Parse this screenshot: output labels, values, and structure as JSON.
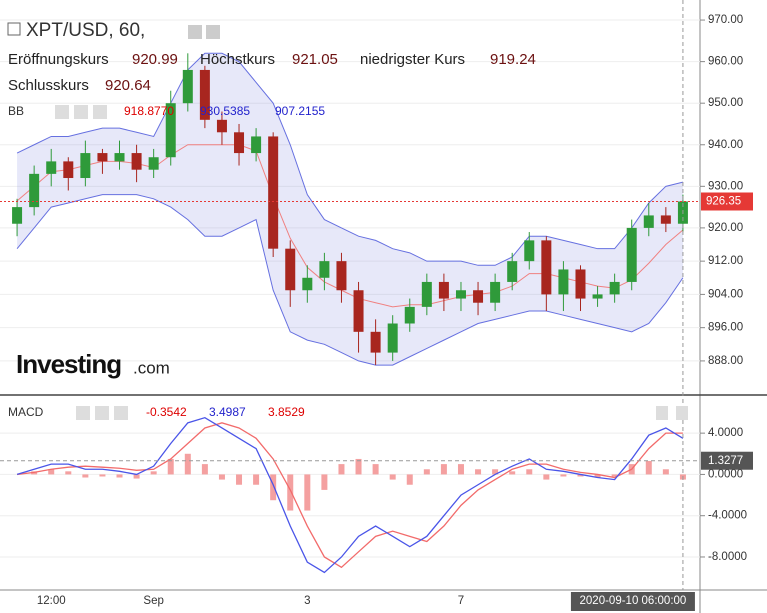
{
  "chart_data": [
    {
      "type": "candlestick",
      "title": "XPT/USD, 60,",
      "legend": {
        "labels": [
          "Eröffnungskurs",
          "Höchstkurs",
          "niedrigster Kurs",
          "Schlusskurs"
        ],
        "values": [
          920.99,
          921.05,
          919.24,
          920.64
        ]
      },
      "indicator": {
        "name": "BB",
        "values": [
          {
            "value": 918.877,
            "label": "918.8770"
          },
          {
            "value": 930.5385,
            "label": "930.5385"
          },
          {
            "value": 907.2155,
            "label": "907.2155"
          }
        ]
      },
      "logo": {
        "name": "Investing",
        "suffix": ".com"
      },
      "up_color": "#2f9a3a",
      "down_color": "#a8261f",
      "open": [
        921,
        925,
        933,
        936,
        932,
        938,
        936,
        938,
        934,
        937,
        950,
        958,
        946,
        943,
        938,
        942,
        915,
        905,
        908,
        912,
        905,
        895,
        890,
        897,
        901,
        907,
        903,
        905,
        902,
        907,
        912,
        917,
        904,
        910,
        903,
        904,
        907,
        920,
        923,
        921
      ],
      "high": [
        927,
        935,
        939,
        937,
        941,
        939,
        941,
        940,
        939,
        953,
        962,
        959,
        948,
        945,
        944,
        943,
        917,
        911,
        914,
        914,
        907,
        898,
        899,
        903,
        909,
        909,
        907,
        907,
        909,
        914,
        919,
        918,
        912,
        911,
        906,
        909,
        922,
        926,
        925,
        928
      ],
      "low": [
        918,
        923,
        930,
        929,
        930,
        933,
        934,
        931,
        932,
        935,
        948,
        944,
        940,
        935,
        936,
        913,
        901,
        902,
        905,
        902,
        890,
        887,
        888,
        895,
        899,
        900,
        900,
        899,
        900,
        905,
        910,
        900,
        900,
        900,
        901,
        902,
        905,
        918,
        919,
        919
      ],
      "close": [
        925,
        933,
        936,
        932,
        938,
        936,
        938,
        934,
        937,
        950,
        958,
        946,
        943,
        938,
        942,
        915,
        905,
        908,
        912,
        905,
        895,
        890,
        897,
        901,
        907,
        903,
        905,
        902,
        907,
        912,
        917,
        904,
        910,
        903,
        904,
        907,
        920,
        923,
        921,
        926.35
      ],
      "bands": {
        "band_color": "#6670e0",
        "mid_color": "#f08080",
        "fill": "rgba(120,130,220,0.18)",
        "upper": [
          938,
          940,
          942,
          942,
          943,
          944,
          944,
          943,
          942,
          950,
          958,
          962,
          962,
          960,
          955,
          950,
          940,
          928,
          922,
          920,
          918,
          917,
          915,
          914,
          912,
          912,
          912,
          911,
          911,
          913,
          918,
          918,
          917,
          916,
          915,
          915,
          920,
          926,
          930,
          931
        ],
        "middle": [
          926.5,
          930,
          933.5,
          934,
          935,
          936,
          936,
          935.5,
          934.5,
          937.5,
          940,
          940,
          940,
          940,
          938.5,
          927.5,
          917.5,
          910.5,
          907,
          905,
          903,
          902,
          901,
          901.5,
          901.5,
          902.5,
          903.5,
          904,
          904.5,
          906,
          909,
          909,
          908,
          907,
          906,
          905.5,
          907.5,
          911.5,
          916,
          919.5
        ],
        "lower": [
          915,
          920,
          925,
          926,
          927,
          928,
          928,
          928,
          927,
          925,
          922,
          918,
          918,
          920,
          922,
          905,
          895,
          893,
          892,
          890,
          888,
          887,
          887,
          889,
          891,
          893,
          895,
          897,
          898,
          899,
          900,
          900,
          899,
          898,
          897,
          896,
          895,
          897,
          902,
          908
        ]
      },
      "current_price": 926.35,
      "current_color": "#e53935",
      "ylim": [
        879.8,
        972.9
      ],
      "yticks": [
        {
          "value": 970,
          "label": "970.00"
        },
        {
          "value": 960,
          "label": "960.00"
        },
        {
          "value": 950,
          "label": "950.00"
        },
        {
          "value": 940,
          "label": "940.00"
        },
        {
          "value": 930,
          "label": "930.00"
        },
        {
          "value": 920,
          "label": "920.00"
        },
        {
          "value": 912,
          "label": "912.00"
        },
        {
          "value": 904,
          "label": "904.00"
        },
        {
          "value": 896,
          "label": "896.00"
        },
        {
          "value": 888,
          "label": "888.00"
        }
      ],
      "grid": true
    },
    {
      "type": "macd",
      "name": "MACD",
      "legend_values": [
        -0.3542,
        3.4987,
        3.8529
      ],
      "categories": [
        null,
        null,
        "12:00",
        null,
        null,
        null,
        null,
        null,
        "Sep",
        null,
        null,
        null,
        null,
        null,
        null,
        null,
        null,
        "3",
        null,
        null,
        null,
        null,
        null,
        null,
        null,
        null,
        "7",
        null,
        null,
        null,
        null,
        null,
        null,
        null,
        null,
        null,
        null,
        null,
        null,
        "2020-09-10 06:00:00"
      ],
      "series": [
        {
          "name": "MACD",
          "color": "#4a55e8",
          "values": [
            0,
            0.5,
            1,
            1,
            0.5,
            0.5,
            0.3,
            0,
            0.8,
            3,
            5,
            5.5,
            4.5,
            3.5,
            2.5,
            -1,
            -5,
            -8.5,
            -9.5,
            -8,
            -6,
            -5,
            -6,
            -7,
            -6,
            -4,
            -2,
            -1,
            0,
            0.8,
            1.5,
            0.5,
            0.3,
            0,
            -0.3,
            -0.5,
            1.5,
            3.8,
            4.5,
            3.5
          ]
        },
        {
          "name": "Signal",
          "color": "#f26b6b",
          "values": [
            0,
            0.2,
            0.5,
            0.7,
            0.8,
            0.7,
            0.6,
            0.4,
            0.5,
            1.5,
            3,
            4.5,
            5,
            4.5,
            3.5,
            1.5,
            -1.5,
            -5,
            -8,
            -9,
            -7.5,
            -6,
            -5.5,
            -6,
            -6.5,
            -5,
            -3,
            -1.5,
            -0.5,
            0.5,
            1,
            1,
            0.5,
            0.2,
            0,
            -0.3,
            0.5,
            2.5,
            4,
            4
          ]
        },
        {
          "name": "Histogram",
          "color": "#f4a0a0",
          "values": [
            0,
            0.3,
            0.5,
            0.3,
            -0.3,
            -0.2,
            -0.3,
            -0.4,
            0.3,
            1.5,
            2,
            1,
            -0.5,
            -1,
            -1,
            -2.5,
            -3.5,
            -3.5,
            -1.5,
            1,
            1.5,
            1,
            -0.5,
            -1,
            0.5,
            1,
            1,
            0.5,
            0.5,
            0.3,
            0.5,
            -0.5,
            -0.2,
            -0.2,
            -0.3,
            -0.2,
            1,
            1.3,
            0.5,
            -0.5
          ]
        }
      ],
      "marker_value": 1.3277,
      "marker_color": "#555",
      "ylim": [
        -11.2,
        7.6
      ],
      "yticks": [
        {
          "value": 4,
          "label": "4.0000"
        },
        {
          "value": 0,
          "label": "0.0000"
        },
        {
          "value": -4,
          "label": "-4.0000"
        },
        {
          "value": -8,
          "label": "-8.0000"
        }
      ],
      "grid": true
    }
  ]
}
